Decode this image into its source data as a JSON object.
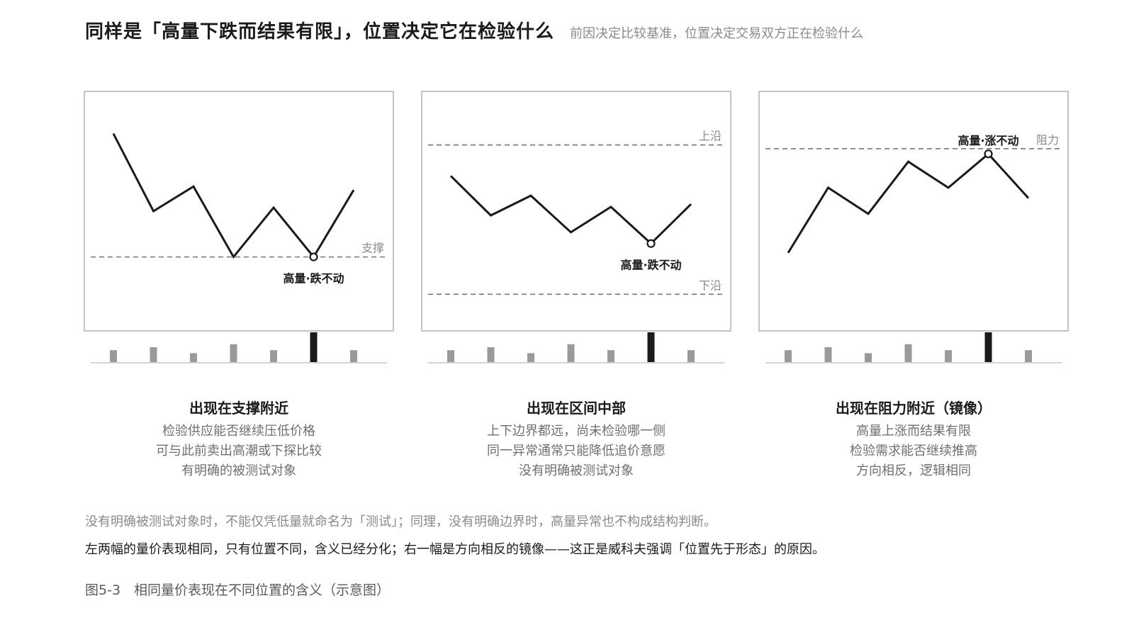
{
  "header": {
    "title": "同样是「高量下跌而结果有限」，位置决定它在检验什么",
    "subtitle": "前因决定比较基准，位置决定交易双方正在检验什么"
  },
  "colors": {
    "ink": "#1a1a1a",
    "muted": "#8a8a8a",
    "normal_bar": "#9a9a9a",
    "highlight_bar": "#1a1a1a",
    "frame": "#b4b4b4"
  },
  "panels": [
    {
      "id": "support",
      "price": [
        35,
        13,
        20,
        0,
        14,
        0,
        19
      ],
      "marker_index": 5,
      "volume": [
        4,
        5,
        3,
        6,
        4,
        10,
        4
      ],
      "volume_highlight_index": 5,
      "price_range": [
        -21,
        47
      ],
      "levels": [
        {
          "value": 0,
          "label": "支撑"
        }
      ],
      "marker_label": "高量·跌不动",
      "marker_label_position": "below",
      "caption": {
        "title": "出现在支撑附近",
        "lines": [
          "检验供应能否继续压低价格",
          "可与此前卖出高潮或下探比较",
          "有明确的被测试对象"
        ]
      }
    },
    {
      "id": "midrange",
      "price": [
        24,
        10,
        17,
        4,
        13,
        0,
        14
      ],
      "marker_index": 5,
      "volume": [
        4,
        5,
        3,
        6,
        4,
        10,
        4
      ],
      "volume_highlight_index": 5,
      "price_range": [
        -31,
        54
      ],
      "levels": [
        {
          "value": 35,
          "label": "上沿"
        },
        {
          "value": -18,
          "label": "下沿"
        }
      ],
      "marker_label": "高量·跌不动",
      "marker_label_position": "below",
      "caption": {
        "title": "出现在区间中部",
        "lines": [
          "上下边界都远，尚未检验哪一侧",
          "同一异常通常只能降低追价意愿",
          "没有明确被测试对象"
        ]
      }
    },
    {
      "id": "resistance",
      "price": [
        0,
        25,
        15,
        35,
        25,
        38,
        21
      ],
      "marker_index": 5,
      "volume": [
        4,
        5,
        3,
        6,
        4,
        10,
        4
      ],
      "volume_highlight_index": 5,
      "price_range": [
        -30,
        62
      ],
      "levels": [
        {
          "value": 40,
          "label": "阻力"
        }
      ],
      "marker_label": "高量·涨不动",
      "marker_label_position": "above",
      "caption": {
        "title": "出现在阻力附近（镜像）",
        "lines": [
          "高量上涨而结果有限",
          "检验需求能否继续推高",
          "方向相反，逻辑相同"
        ]
      }
    }
  ],
  "notes": {
    "note1": "没有明确被测试对象时，不能仅凭低量就命名为「测试」；同理，没有明确边界时，高量异常也不构成结构判断。",
    "note2": "左两幅的量价表现相同，只有位置不同，含义已经分化；右一幅是方向相反的镜像——这正是威科夫强调「位置先于形态」的原因。"
  },
  "figure_caption": "图5-3　相同量价表现在不同位置的含义（示意图）"
}
